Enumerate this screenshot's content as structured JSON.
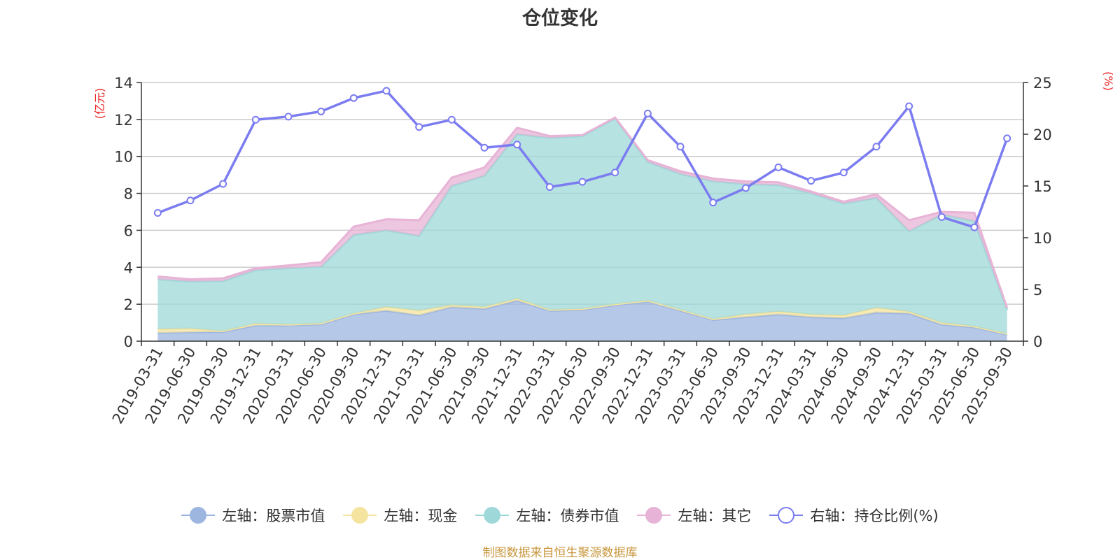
{
  "chart_data": {
    "type": "area",
    "title": "仓位变化",
    "y_left_label": "(亿元)",
    "y_right_label": "(%)",
    "y_left_range": [
      0,
      14
    ],
    "y_left_ticks": [
      "0",
      "2",
      "4",
      "6",
      "8",
      "10",
      "12",
      "14"
    ],
    "y_right_range": [
      0,
      25
    ],
    "y_right_ticks": [
      "0",
      "5",
      "10",
      "15",
      "20",
      "25"
    ],
    "categories": [
      "2019-03-31",
      "2019-06-30",
      "2019-09-30",
      "2019-12-31",
      "2020-03-31",
      "2020-06-30",
      "2020-09-30",
      "2020-12-31",
      "2021-03-31",
      "2021-06-30",
      "2021-09-30",
      "2021-12-31",
      "2022-03-31",
      "2022-06-30",
      "2022-09-30",
      "2022-12-31",
      "2023-03-31",
      "2023-06-30",
      "2023-09-30",
      "2023-12-31",
      "2024-03-31",
      "2024-06-30",
      "2024-09-30",
      "2024-12-31",
      "2025-03-31",
      "2025-06-30",
      "2025-09-30"
    ],
    "series": [
      {
        "name": "左轴：股票市值",
        "axis": "left",
        "kind": "stacked-area",
        "color": "#9db6e0",
        "values": [
          0.45,
          0.48,
          0.5,
          0.85,
          0.85,
          0.92,
          1.45,
          1.65,
          1.4,
          1.85,
          1.75,
          2.2,
          1.65,
          1.7,
          1.95,
          2.15,
          1.65,
          1.15,
          1.3,
          1.45,
          1.3,
          1.25,
          1.55,
          1.5,
          0.9,
          0.75,
          0.35
        ]
      },
      {
        "name": "左轴：现金",
        "axis": "left",
        "kind": "stacked-area",
        "color": "#f5e4a0",
        "values": [
          0.2,
          0.2,
          0.05,
          0.1,
          0.05,
          0.05,
          0.05,
          0.2,
          0.25,
          0.1,
          0.1,
          0.1,
          0.05,
          0.05,
          0.05,
          0.05,
          0.05,
          0.05,
          0.15,
          0.15,
          0.15,
          0.15,
          0.25,
          0.1,
          0.1,
          0.05,
          0.05
        ]
      },
      {
        "name": "左轴：债券市值",
        "axis": "left",
        "kind": "stacked-area",
        "color": "#9fd8d8",
        "values": [
          2.7,
          2.55,
          2.7,
          2.9,
          3.05,
          3.05,
          4.25,
          4.15,
          4.05,
          6.45,
          7.1,
          8.9,
          9.3,
          9.35,
          10.05,
          7.5,
          7.35,
          7.45,
          7.05,
          6.85,
          6.55,
          6.05,
          5.95,
          4.35,
          5.85,
          5.7,
          1.3
        ]
      },
      {
        "name": "左轴：其它",
        "axis": "left",
        "kind": "stacked-area",
        "color": "#e7b3d6",
        "values": [
          0.15,
          0.12,
          0.15,
          0.1,
          0.15,
          0.25,
          0.45,
          0.6,
          0.85,
          0.45,
          0.45,
          0.35,
          0.1,
          0.05,
          0.05,
          0.1,
          0.15,
          0.15,
          0.15,
          0.15,
          0.1,
          0.1,
          0.2,
          0.6,
          0.15,
          0.45,
          0.1
        ]
      },
      {
        "name": "右轴：持仓比例(%)",
        "axis": "right",
        "kind": "line",
        "color": "#7b7cf0",
        "values": [
          12.4,
          13.6,
          15.2,
          21.4,
          21.7,
          22.2,
          23.5,
          24.2,
          20.7,
          21.4,
          18.7,
          19.0,
          14.9,
          15.4,
          16.3,
          22.0,
          18.8,
          13.4,
          14.8,
          16.8,
          15.5,
          16.3,
          18.8,
          22.7,
          12.0,
          11.0,
          19.6
        ]
      }
    ]
  },
  "source_note": "制图数据来自恒生聚源数据库"
}
